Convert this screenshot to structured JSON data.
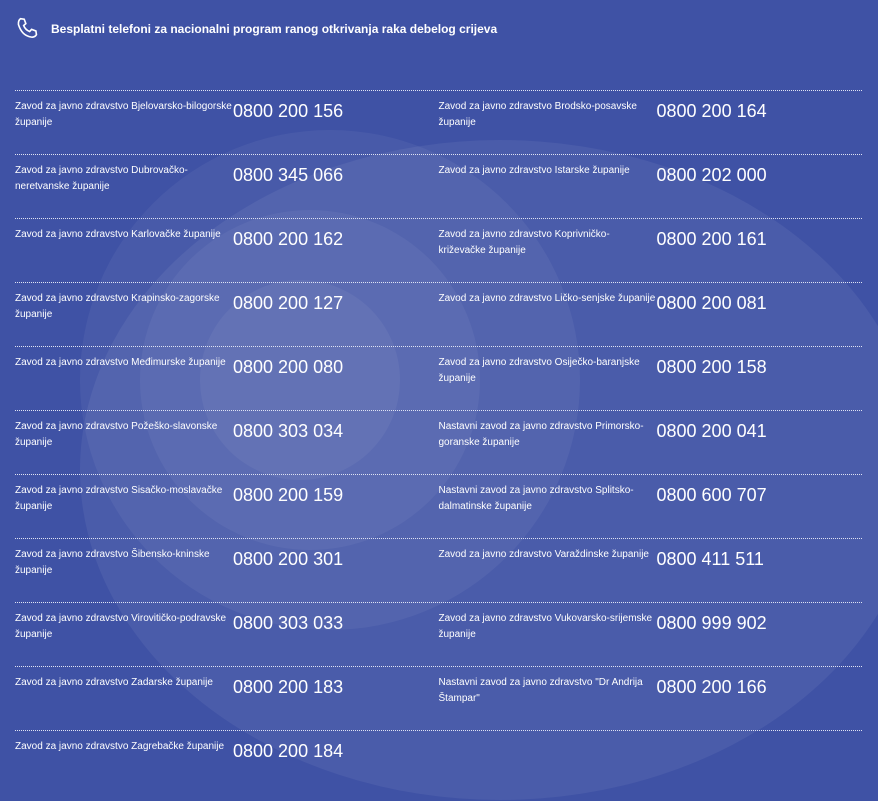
{
  "header": {
    "title": "Besplatni telefoni za nacionalni program ranog otkrivanja raka debelog crijeva",
    "icon": "phone-icon"
  },
  "rows": [
    [
      {
        "name": "Zavod za javno zdravstvo Bjelovarsko-bilogorske županije",
        "phone": "0800 200 156"
      },
      {
        "name": "Zavod za javno zdravstvo Brodsko-posavske županije",
        "phone": "0800 200 164"
      }
    ],
    [
      {
        "name": "Zavod za javno zdravstvo Dubrovačko-neretvanske županije",
        "phone": "0800 345 066"
      },
      {
        "name": "Zavod za javno zdravstvo Istarske županije",
        "phone": "0800 202 000"
      }
    ],
    [
      {
        "name": "Zavod za javno zdravstvo Karlovačke županije",
        "phone": "0800 200 162"
      },
      {
        "name": "Zavod za javno zdravstvo Koprivničko-križevačke županije",
        "phone": "0800 200 161"
      }
    ],
    [
      {
        "name": "Zavod za javno zdravstvo Krapinsko-zagorske županije",
        "phone": "0800 200 127"
      },
      {
        "name": "Zavod za javno zdravstvo Ličko-senjske županije",
        "phone": "0800 200 081"
      }
    ],
    [
      {
        "name": "Zavod za javno zdravstvo Međimurske županije",
        "phone": "0800 200 080"
      },
      {
        "name": "Zavod za javno zdravstvo Osiječko-baranjske županije",
        "phone": "0800 200 158"
      }
    ],
    [
      {
        "name": "Zavod za javno zdravstvo Požeško-slavonske županije",
        "phone": "0800 303 034"
      },
      {
        "name": "Nastavni zavod za javno zdravstvo Primorsko-goranske županije",
        "phone": "0800 200 041"
      }
    ],
    [
      {
        "name": "Zavod za javno zdravstvo Sisačko-moslavačke županije",
        "phone": "0800 200 159"
      },
      {
        "name": "Nastavni zavod za javno zdravstvo Splitsko-dalmatinske županije",
        "phone": "0800 600 707"
      }
    ],
    [
      {
        "name": "Zavod za javno zdravstvo Šibensko-kninske županije",
        "phone": "0800 200 301"
      },
      {
        "name": "Zavod za javno zdravstvo Varaždinske županije",
        "phone": "0800 411 511"
      }
    ],
    [
      {
        "name": "Zavod za javno zdravstvo Virovitičko-podravske županije",
        "phone": "0800 303 033"
      },
      {
        "name": "Zavod za javno zdravstvo Vukovarsko-srijemske županije",
        "phone": "0800 999 902"
      }
    ],
    [
      {
        "name": "Zavod za javno zdravstvo Zadarske županije",
        "phone": "0800 200 183"
      },
      {
        "name": "Nastavni zavod za javno zdravstvo \"Dr Andrija Štampar\"",
        "phone": "0800 200 166"
      }
    ],
    [
      {
        "name": "Zavod za javno zdravstvo Zagrebačke županije",
        "phone": "0800 200 184"
      }
    ]
  ]
}
